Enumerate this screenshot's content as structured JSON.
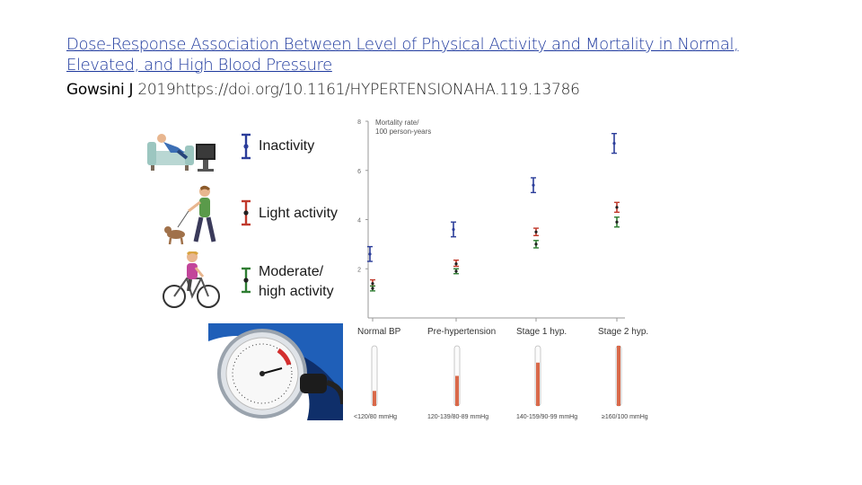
{
  "slide": {
    "title": "Dose-Response Association Between Level of Physical Activity and Mortality in Normal, Elevated, and High Blood Pressure",
    "citation_author": "Gowsini J",
    "citation_rest": " 2019https://doi.org/10.1161/HYPERTENSIONAHA.119.13786"
  },
  "legend": {
    "items": [
      {
        "label": "Inactivity",
        "color": "#2b3d9a",
        "icon": "couch-tv-icon"
      },
      {
        "label": "Light activity",
        "color": "#c0392b",
        "icon": "dog-walker-icon"
      },
      {
        "label": "Moderate/\nhigh activity",
        "color": "#2e7d32",
        "icon": "cyclist-icon"
      }
    ]
  },
  "chart_data": {
    "type": "scatter",
    "title": "",
    "ylabel_lines": [
      "Mortality rate/",
      "100 person-years"
    ],
    "ylim": [
      0,
      8
    ],
    "yticks": [
      2,
      4,
      6,
      8
    ],
    "categories": [
      "Normal BP",
      "Pre-hypertension",
      "Stage 1 hyp.",
      "Stage 2 hyp."
    ],
    "ranges": [
      "<120/80 mmHg",
      "120-139/80-89 mmHg",
      "140-159/90-99 mmHg",
      "≥160/100 mmHg"
    ],
    "thermometer_fill": [
      0.25,
      0.5,
      0.72,
      1.0
    ],
    "series": [
      {
        "name": "Inactivity",
        "color": "#2b3d9a",
        "values": [
          2.6,
          3.6,
          5.4,
          7.1
        ],
        "lo": [
          2.3,
          3.3,
          5.1,
          6.7
        ],
        "hi": [
          2.9,
          3.9,
          5.7,
          7.5
        ]
      },
      {
        "name": "Light activity",
        "color": "#c0392b",
        "values": [
          1.4,
          2.2,
          3.5,
          4.5
        ],
        "lo": [
          1.3,
          2.1,
          3.35,
          4.3
        ],
        "hi": [
          1.55,
          2.35,
          3.65,
          4.7
        ]
      },
      {
        "name": "Moderate/high activity",
        "color": "#2e7d32",
        "values": [
          1.2,
          1.9,
          3.0,
          3.9
        ],
        "lo": [
          1.1,
          1.8,
          2.85,
          3.7
        ],
        "hi": [
          1.3,
          2.0,
          3.15,
          4.1
        ]
      }
    ]
  }
}
